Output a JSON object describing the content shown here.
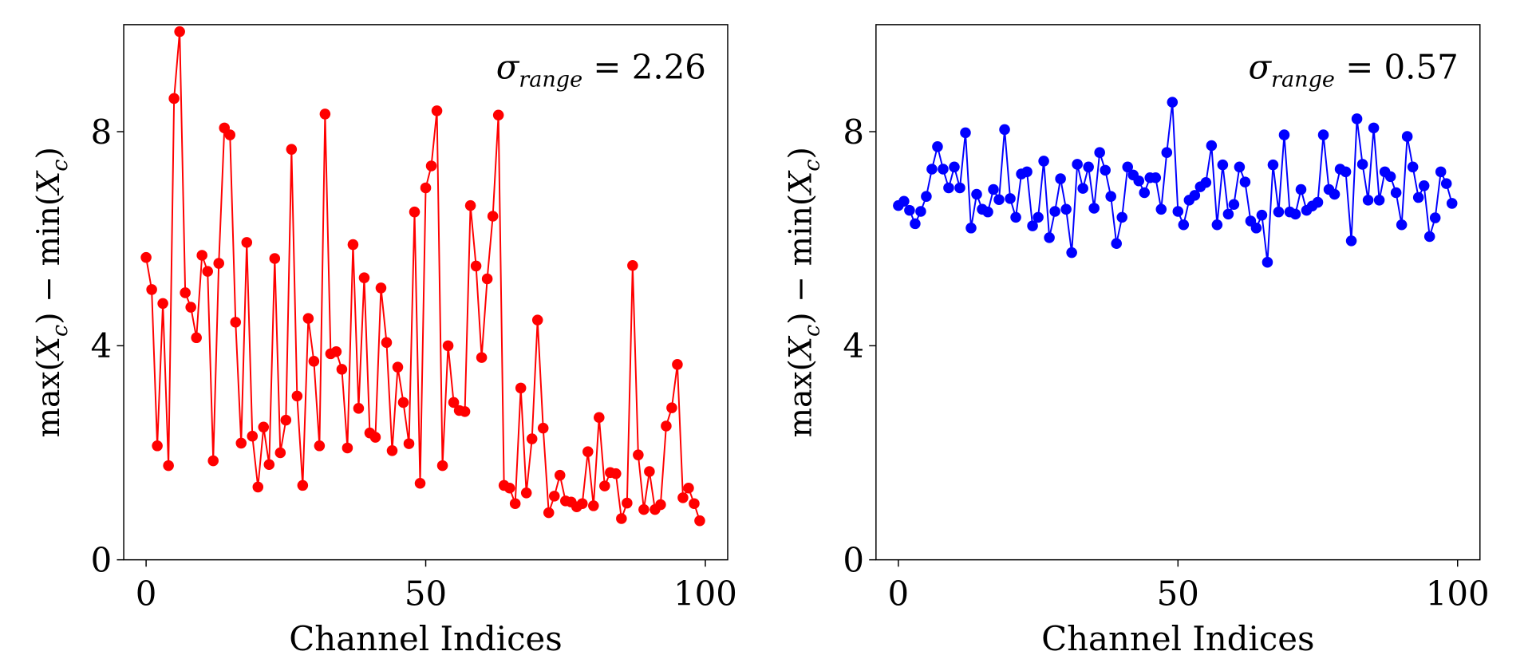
{
  "chart_data": [
    {
      "type": "line",
      "marker": "circle",
      "color": "#ff0000",
      "xlabel": "Channel Indices",
      "ylabel": "max(X_c) − min(X_c)",
      "ylabel_parts": {
        "max": "max(",
        "X": "X",
        "sub": "c",
        "mid": ") − min(",
        "end": ")"
      },
      "annotation": {
        "symbol": "σ",
        "sub": "range",
        "eq": " = 2.26"
      },
      "xlim": [
        -4,
        104
      ],
      "ylim": [
        0,
        10
      ],
      "xticks": [
        0,
        50,
        100
      ],
      "yticks": [
        0,
        4,
        8
      ],
      "grid": false,
      "x_start": 0,
      "values": [
        5.65,
        5.05,
        2.13,
        4.79,
        1.76,
        8.62,
        9.87,
        4.99,
        4.72,
        4.15,
        5.69,
        5.39,
        1.85,
        5.54,
        8.07,
        7.94,
        4.44,
        2.18,
        5.93,
        2.31,
        1.36,
        2.48,
        1.78,
        5.63,
        2.0,
        2.61,
        7.67,
        3.06,
        1.39,
        4.51,
        3.71,
        2.13,
        8.33,
        3.85,
        3.89,
        3.56,
        2.09,
        5.89,
        2.83,
        5.27,
        2.37,
        2.29,
        5.08,
        4.06,
        2.04,
        3.6,
        2.94,
        2.17,
        6.5,
        1.43,
        6.95,
        7.36,
        8.39,
        1.76,
        4.0,
        2.94,
        2.79,
        2.77,
        6.62,
        5.49,
        3.78,
        5.25,
        6.42,
        8.31,
        1.39,
        1.34,
        1.05,
        3.21,
        1.25,
        2.26,
        4.48,
        2.46,
        0.88,
        1.19,
        1.58,
        1.1,
        1.08,
        0.99,
        1.05,
        2.02,
        1.01,
        2.66,
        1.38,
        1.63,
        1.61,
        0.77,
        1.06,
        5.5,
        1.96,
        0.94,
        1.65,
        0.94,
        1.03,
        2.5,
        2.84,
        3.65,
        1.16,
        1.34,
        1.05,
        0.73
      ]
    },
    {
      "type": "line",
      "marker": "circle",
      "color": "#0000ff",
      "xlabel": "Channel Indices",
      "ylabel": "max(X_c) − min(X_c)",
      "ylabel_parts": {
        "max": "max(",
        "X": "X",
        "sub": "c",
        "mid": ") − min(",
        "end": ")"
      },
      "annotation": {
        "symbol": "σ",
        "sub": "range",
        "eq": " = 0.57"
      },
      "xlim": [
        -4,
        104
      ],
      "ylim": [
        0,
        10
      ],
      "xticks": [
        0,
        50,
        100
      ],
      "yticks": [
        0,
        4,
        8
      ],
      "grid": false,
      "x_start": 0,
      "values": [
        6.62,
        6.7,
        6.53,
        6.28,
        6.51,
        6.79,
        7.3,
        7.72,
        7.3,
        6.95,
        7.34,
        6.95,
        7.98,
        6.2,
        6.83,
        6.55,
        6.5,
        6.92,
        6.73,
        8.04,
        6.75,
        6.4,
        7.21,
        7.25,
        6.24,
        6.4,
        7.45,
        6.02,
        6.51,
        7.12,
        6.55,
        5.74,
        7.39,
        6.94,
        7.34,
        6.57,
        7.61,
        7.28,
        6.79,
        5.91,
        6.4,
        7.34,
        7.19,
        7.08,
        6.86,
        7.14,
        7.14,
        6.55,
        7.61,
        8.55,
        6.51,
        6.26,
        6.72,
        6.81,
        6.97,
        7.05,
        7.74,
        6.26,
        7.38,
        6.46,
        6.64,
        7.34,
        7.06,
        6.33,
        6.2,
        6.44,
        5.56,
        7.38,
        6.5,
        7.94,
        6.5,
        6.46,
        6.92,
        6.53,
        6.61,
        6.68,
        7.94,
        6.92,
        6.83,
        7.3,
        7.25,
        5.96,
        8.24,
        7.39,
        6.72,
        8.07,
        6.72,
        7.25,
        7.16,
        6.86,
        6.26,
        7.91,
        7.34,
        6.77,
        6.99,
        6.04,
        6.39,
        7.25,
        7.03,
        6.66
      ]
    }
  ]
}
